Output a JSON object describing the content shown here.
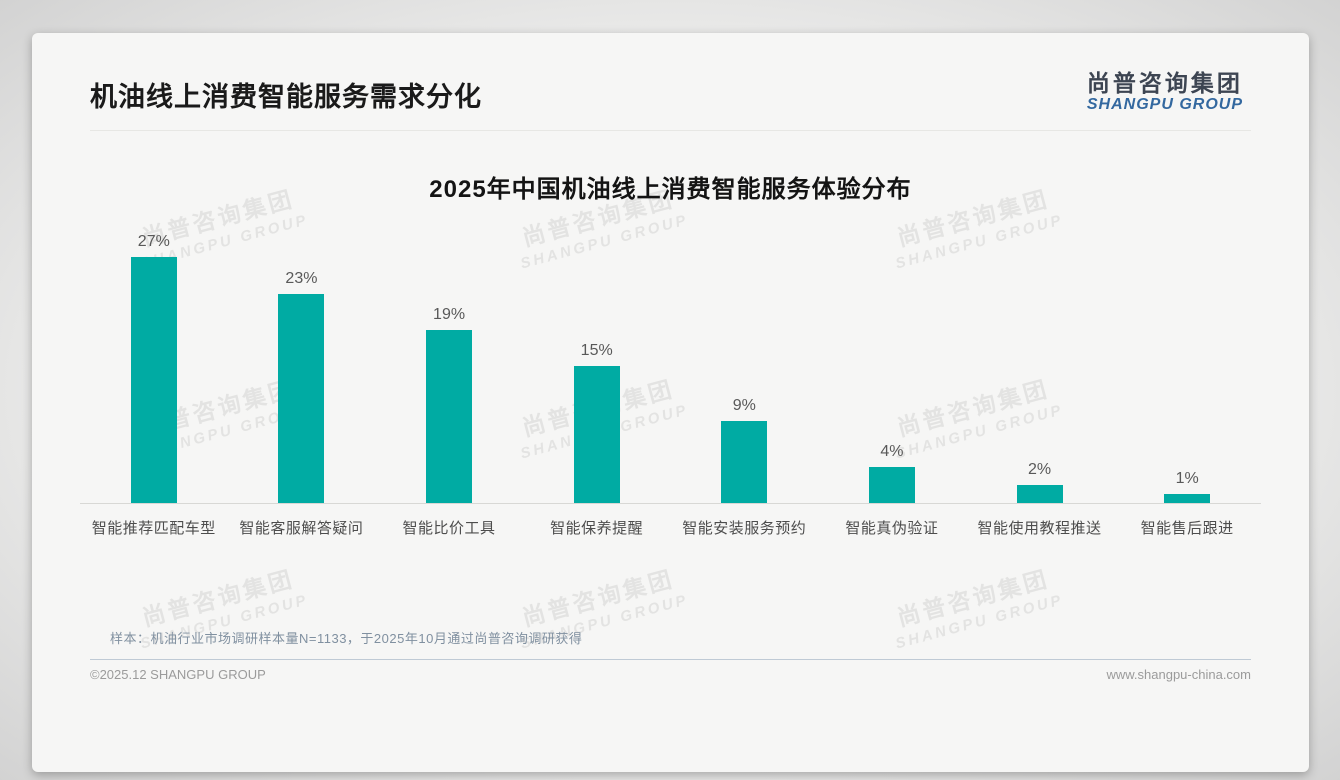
{
  "page": {
    "title": "机油线上消费智能服务需求分化",
    "logo": {
      "name_cn": "尚普咨询集团",
      "name_en": "SHANGPU GROUP"
    },
    "watermark": {
      "line1": "尚普咨询集团",
      "line2": "SHANGPU GROUP"
    },
    "footnote": "样本：机油行业市场调研样本量N=1133，于2025年10月通过尚普咨询调研获得",
    "footer": {
      "copyright": "©2025.12 SHANGPU GROUP",
      "website": "www.shangpu-china.com"
    }
  },
  "chart_data": {
    "type": "bar",
    "title": "2025年中国机油线上消费智能服务体验分布",
    "categories": [
      "智能推荐匹配车型",
      "智能客服解答疑问",
      "智能比价工具",
      "智能保养提醒",
      "智能安装服务预约",
      "智能真伪验证",
      "智能使用教程推送",
      "智能售后跟进"
    ],
    "values": [
      27,
      23,
      19,
      15,
      9,
      4,
      2,
      1
    ],
    "unit": "%",
    "value_label_position": "above",
    "bar_color": "#00ABA3",
    "xlabel": "",
    "ylabel": "",
    "ylim": [
      0,
      30
    ],
    "grid": false,
    "legend": false
  },
  "colors": {
    "bar_accent": "#00ABA3",
    "logo_blue": "#33689F",
    "logo_dark": "#3D4552",
    "footnote_text": "#8090A0"
  }
}
